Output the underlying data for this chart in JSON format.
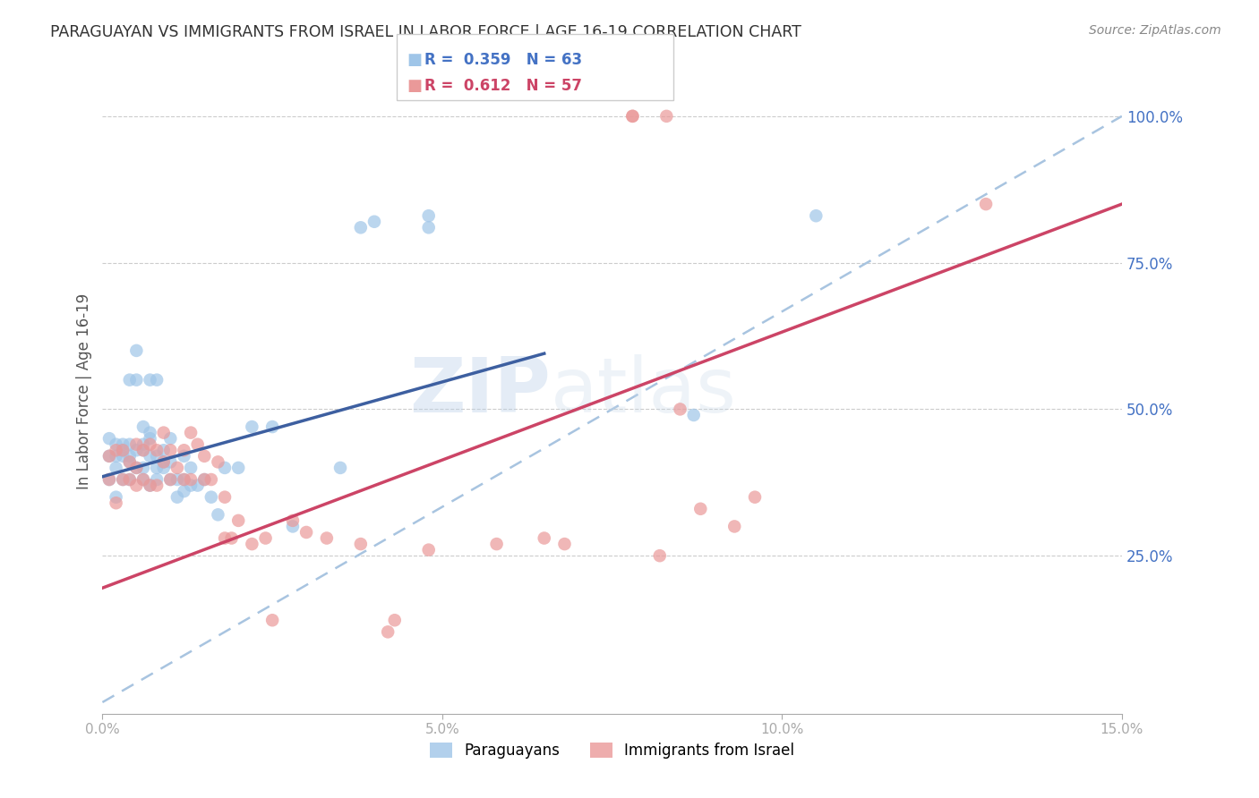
{
  "title": "PARAGUAYAN VS IMMIGRANTS FROM ISRAEL IN LABOR FORCE | AGE 16-19 CORRELATION CHART",
  "source": "Source: ZipAtlas.com",
  "ylabel": "In Labor Force | Age 16-19",
  "xlim": [
    0.0,
    0.15
  ],
  "ylim": [
    -0.02,
    1.08
  ],
  "yticks_right": [
    0.25,
    0.5,
    0.75,
    1.0
  ],
  "blue_color": "#9fc5e8",
  "blue_line_color": "#3d5fa0",
  "blue_dashed_color": "#a8c4e0",
  "pink_color": "#ea9999",
  "pink_line_color": "#cc4466",
  "legend_blue_label": "Paraguayans",
  "legend_pink_label": "Immigrants from Israel",
  "r_blue": 0.359,
  "n_blue": 63,
  "r_pink": 0.612,
  "n_pink": 57,
  "blue_line_x0": 0.0,
  "blue_line_y0": 0.385,
  "blue_line_x1": 0.065,
  "blue_line_y1": 0.595,
  "pink_line_x0": 0.0,
  "pink_line_y0": 0.195,
  "pink_line_x1": 0.15,
  "pink_line_y1": 0.85,
  "dash_line_x0": 0.0,
  "dash_line_y0": 0.0,
  "dash_line_x1": 0.15,
  "dash_line_y1": 1.0,
  "blue_scatter_x": [
    0.001,
    0.001,
    0.001,
    0.002,
    0.002,
    0.002,
    0.002,
    0.003,
    0.003,
    0.003,
    0.003,
    0.004,
    0.004,
    0.004,
    0.004,
    0.004,
    0.005,
    0.005,
    0.005,
    0.005,
    0.006,
    0.006,
    0.006,
    0.006,
    0.006,
    0.007,
    0.007,
    0.007,
    0.007,
    0.007,
    0.008,
    0.008,
    0.008,
    0.008,
    0.009,
    0.009,
    0.009,
    0.01,
    0.01,
    0.01,
    0.011,
    0.011,
    0.012,
    0.012,
    0.012,
    0.013,
    0.013,
    0.014,
    0.015,
    0.016,
    0.017,
    0.018,
    0.02,
    0.022,
    0.025,
    0.028,
    0.035,
    0.038,
    0.04,
    0.048,
    0.048,
    0.087,
    0.105
  ],
  "blue_scatter_y": [
    0.38,
    0.42,
    0.45,
    0.35,
    0.4,
    0.42,
    0.44,
    0.38,
    0.42,
    0.43,
    0.44,
    0.38,
    0.41,
    0.42,
    0.44,
    0.55,
    0.4,
    0.43,
    0.55,
    0.6,
    0.38,
    0.4,
    0.43,
    0.44,
    0.47,
    0.37,
    0.42,
    0.45,
    0.46,
    0.55,
    0.38,
    0.4,
    0.42,
    0.55,
    0.4,
    0.41,
    0.43,
    0.38,
    0.41,
    0.45,
    0.35,
    0.38,
    0.36,
    0.38,
    0.42,
    0.37,
    0.4,
    0.37,
    0.38,
    0.35,
    0.32,
    0.4,
    0.4,
    0.47,
    0.47,
    0.3,
    0.4,
    0.81,
    0.82,
    0.81,
    0.83,
    0.49,
    0.83
  ],
  "pink_scatter_x": [
    0.001,
    0.001,
    0.002,
    0.002,
    0.003,
    0.003,
    0.004,
    0.004,
    0.005,
    0.005,
    0.005,
    0.006,
    0.006,
    0.007,
    0.007,
    0.008,
    0.008,
    0.009,
    0.009,
    0.01,
    0.01,
    0.011,
    0.012,
    0.012,
    0.013,
    0.013,
    0.014,
    0.015,
    0.015,
    0.016,
    0.017,
    0.018,
    0.018,
    0.019,
    0.02,
    0.022,
    0.024,
    0.025,
    0.028,
    0.03,
    0.033,
    0.038,
    0.042,
    0.043,
    0.048,
    0.058,
    0.065,
    0.068,
    0.078,
    0.078,
    0.082,
    0.083,
    0.085,
    0.088,
    0.093,
    0.096,
    0.13
  ],
  "pink_scatter_y": [
    0.38,
    0.42,
    0.34,
    0.43,
    0.38,
    0.43,
    0.38,
    0.41,
    0.37,
    0.4,
    0.44,
    0.38,
    0.43,
    0.37,
    0.44,
    0.37,
    0.43,
    0.41,
    0.46,
    0.38,
    0.43,
    0.4,
    0.38,
    0.43,
    0.38,
    0.46,
    0.44,
    0.38,
    0.42,
    0.38,
    0.41,
    0.28,
    0.35,
    0.28,
    0.31,
    0.27,
    0.28,
    0.14,
    0.31,
    0.29,
    0.28,
    0.27,
    0.12,
    0.14,
    0.26,
    0.27,
    0.28,
    0.27,
    1.0,
    1.0,
    0.25,
    1.0,
    0.5,
    0.33,
    0.3,
    0.35,
    0.85
  ],
  "watermark_zip": "ZIP",
  "watermark_atlas": "atlas",
  "background_color": "#ffffff",
  "grid_color": "#cccccc",
  "title_color": "#333333",
  "axis_label_color": "#555555",
  "right_tick_color": "#4472c4",
  "tick_color": "#aaaaaa"
}
